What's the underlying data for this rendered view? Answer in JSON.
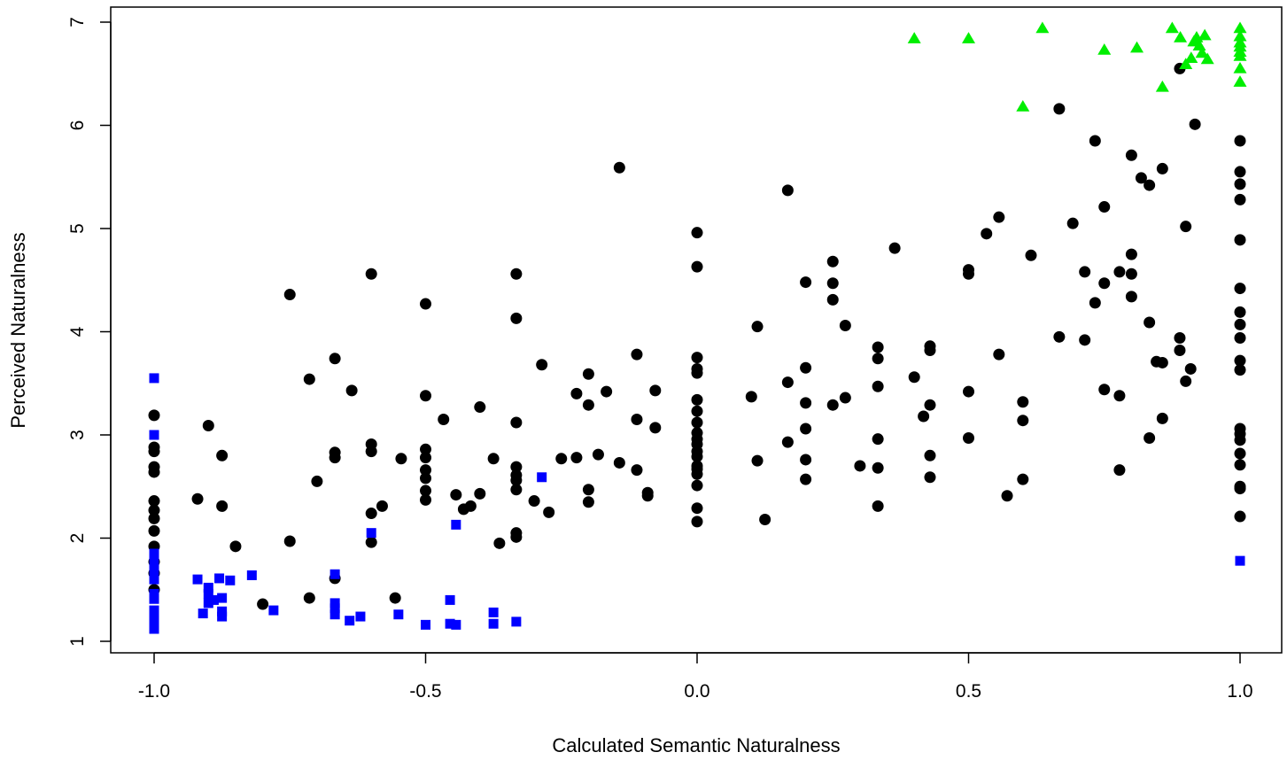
{
  "chart_data": {
    "type": "scatter",
    "title": "",
    "xlabel": "Calculated Semantic Naturalness",
    "ylabel": "Perceived Naturalness",
    "xlim": [
      -1.0,
      1.0
    ],
    "ylim": [
      1,
      7
    ],
    "x_ticks": [
      "-1.0",
      "-0.5",
      "0.0",
      "0.5",
      "1.0"
    ],
    "y_ticks": [
      "1",
      "2",
      "3",
      "4",
      "5",
      "6",
      "7"
    ],
    "grid": false,
    "legend": "none",
    "series": [
      {
        "marker": "circle",
        "color": "#000000",
        "points": [
          [
            -1.0,
            3.19
          ],
          [
            -1.0,
            2.88
          ],
          [
            -1.0,
            2.84
          ],
          [
            -1.0,
            2.69
          ],
          [
            -1.0,
            2.64
          ],
          [
            -1.0,
            2.36
          ],
          [
            -1.0,
            2.27
          ],
          [
            -1.0,
            2.19
          ],
          [
            -1.0,
            2.07
          ],
          [
            -1.0,
            1.92
          ],
          [
            -1.0,
            1.77
          ],
          [
            -1.0,
            1.66
          ],
          [
            -1.0,
            1.5
          ],
          [
            -0.92,
            2.38
          ],
          [
            -0.9,
            3.09
          ],
          [
            -0.875,
            2.8
          ],
          [
            -0.875,
            2.31
          ],
          [
            -0.85,
            1.92
          ],
          [
            -0.8,
            1.36
          ],
          [
            -0.75,
            4.36
          ],
          [
            -0.75,
            1.97
          ],
          [
            -0.714,
            3.54
          ],
          [
            -0.714,
            1.42
          ],
          [
            -0.7,
            2.55
          ],
          [
            -0.667,
            3.74
          ],
          [
            -0.667,
            2.83
          ],
          [
            -0.667,
            2.78
          ],
          [
            -0.667,
            1.61
          ],
          [
            -0.636,
            3.43
          ],
          [
            -0.6,
            4.56
          ],
          [
            -0.6,
            2.91
          ],
          [
            -0.6,
            2.84
          ],
          [
            -0.6,
            2.24
          ],
          [
            -0.6,
            1.96
          ],
          [
            -0.58,
            2.31
          ],
          [
            -0.556,
            1.42
          ],
          [
            -0.545,
            2.77
          ],
          [
            -0.5,
            4.27
          ],
          [
            -0.5,
            3.38
          ],
          [
            -0.5,
            2.86
          ],
          [
            -0.5,
            2.78
          ],
          [
            -0.5,
            2.66
          ],
          [
            -0.5,
            2.58
          ],
          [
            -0.5,
            2.46
          ],
          [
            -0.5,
            2.37
          ],
          [
            -0.467,
            3.15
          ],
          [
            -0.444,
            2.42
          ],
          [
            -0.43,
            2.28
          ],
          [
            -0.417,
            2.31
          ],
          [
            -0.4,
            3.27
          ],
          [
            -0.4,
            2.43
          ],
          [
            -0.375,
            2.77
          ],
          [
            -0.364,
            1.95
          ],
          [
            -0.333,
            4.56
          ],
          [
            -0.333,
            4.13
          ],
          [
            -0.333,
            3.12
          ],
          [
            -0.333,
            2.69
          ],
          [
            -0.333,
            2.61
          ],
          [
            -0.333,
            2.56
          ],
          [
            -0.333,
            2.47
          ],
          [
            -0.333,
            2.05
          ],
          [
            -0.333,
            2.01
          ],
          [
            -0.3,
            2.36
          ],
          [
            -0.286,
            3.68
          ],
          [
            -0.273,
            2.25
          ],
          [
            -0.25,
            2.77
          ],
          [
            -0.222,
            3.4
          ],
          [
            -0.222,
            2.78
          ],
          [
            -0.2,
            3.59
          ],
          [
            -0.2,
            3.29
          ],
          [
            -0.2,
            2.47
          ],
          [
            -0.2,
            2.35
          ],
          [
            -0.182,
            2.81
          ],
          [
            -0.167,
            3.42
          ],
          [
            -0.143,
            5.59
          ],
          [
            -0.143,
            2.73
          ],
          [
            -0.111,
            3.78
          ],
          [
            -0.111,
            3.15
          ],
          [
            -0.111,
            2.66
          ],
          [
            -0.091,
            2.44
          ],
          [
            -0.091,
            2.41
          ],
          [
            -0.077,
            3.43
          ],
          [
            -0.077,
            3.07
          ],
          [
            0.0,
            4.96
          ],
          [
            0.0,
            4.63
          ],
          [
            0.0,
            3.75
          ],
          [
            0.0,
            3.64
          ],
          [
            0.0,
            3.6
          ],
          [
            0.0,
            3.34
          ],
          [
            0.0,
            3.23
          ],
          [
            0.0,
            3.12
          ],
          [
            0.0,
            3.02
          ],
          [
            0.0,
            2.96
          ],
          [
            0.0,
            2.91
          ],
          [
            0.0,
            2.84
          ],
          [
            0.0,
            2.79
          ],
          [
            0.0,
            2.7
          ],
          [
            0.0,
            2.67
          ],
          [
            0.0,
            2.62
          ],
          [
            0.0,
            2.51
          ],
          [
            0.0,
            2.29
          ],
          [
            0.0,
            2.16
          ],
          [
            0.1,
            3.37
          ],
          [
            0.111,
            4.05
          ],
          [
            0.111,
            2.75
          ],
          [
            0.125,
            2.18
          ],
          [
            0.167,
            5.37
          ],
          [
            0.167,
            3.51
          ],
          [
            0.167,
            2.93
          ],
          [
            0.2,
            4.48
          ],
          [
            0.2,
            3.65
          ],
          [
            0.2,
            3.31
          ],
          [
            0.2,
            3.06
          ],
          [
            0.2,
            2.76
          ],
          [
            0.2,
            2.57
          ],
          [
            0.25,
            4.68
          ],
          [
            0.25,
            4.47
          ],
          [
            0.25,
            4.31
          ],
          [
            0.25,
            3.29
          ],
          [
            0.273,
            4.06
          ],
          [
            0.273,
            3.36
          ],
          [
            0.3,
            2.7
          ],
          [
            0.333,
            3.85
          ],
          [
            0.333,
            3.74
          ],
          [
            0.333,
            3.47
          ],
          [
            0.333,
            2.96
          ],
          [
            0.333,
            2.68
          ],
          [
            0.333,
            2.31
          ],
          [
            0.364,
            4.81
          ],
          [
            0.4,
            3.56
          ],
          [
            0.417,
            3.18
          ],
          [
            0.429,
            3.86
          ],
          [
            0.429,
            3.82
          ],
          [
            0.429,
            3.29
          ],
          [
            0.429,
            2.8
          ],
          [
            0.429,
            2.59
          ],
          [
            0.5,
            4.6
          ],
          [
            0.5,
            4.56
          ],
          [
            0.5,
            3.42
          ],
          [
            0.5,
            2.97
          ],
          [
            0.533,
            4.95
          ],
          [
            0.556,
            5.11
          ],
          [
            0.556,
            3.78
          ],
          [
            0.571,
            2.41
          ],
          [
            0.6,
            3.32
          ],
          [
            0.6,
            3.14
          ],
          [
            0.6,
            2.57
          ],
          [
            0.615,
            4.74
          ],
          [
            0.667,
            6.16
          ],
          [
            0.667,
            3.95
          ],
          [
            0.692,
            5.05
          ],
          [
            0.714,
            4.58
          ],
          [
            0.714,
            3.92
          ],
          [
            0.733,
            5.85
          ],
          [
            0.733,
            4.28
          ],
          [
            0.75,
            5.21
          ],
          [
            0.75,
            4.47
          ],
          [
            0.75,
            3.44
          ],
          [
            0.778,
            4.58
          ],
          [
            0.778,
            3.38
          ],
          [
            0.778,
            2.66
          ],
          [
            0.8,
            5.71
          ],
          [
            0.8,
            4.75
          ],
          [
            0.8,
            4.56
          ],
          [
            0.8,
            4.34
          ],
          [
            0.818,
            5.49
          ],
          [
            0.833,
            5.42
          ],
          [
            0.833,
            4.09
          ],
          [
            0.833,
            2.97
          ],
          [
            0.846,
            3.71
          ],
          [
            0.857,
            5.58
          ],
          [
            0.857,
            3.7
          ],
          [
            0.857,
            3.16
          ],
          [
            0.889,
            6.55
          ],
          [
            0.889,
            3.94
          ],
          [
            0.889,
            3.82
          ],
          [
            0.9,
            5.02
          ],
          [
            0.9,
            3.52
          ],
          [
            0.909,
            3.64
          ],
          [
            0.917,
            6.01
          ],
          [
            1.0,
            5.85
          ],
          [
            1.0,
            5.55
          ],
          [
            1.0,
            5.43
          ],
          [
            1.0,
            5.28
          ],
          [
            1.0,
            4.89
          ],
          [
            1.0,
            4.42
          ],
          [
            1.0,
            4.19
          ],
          [
            1.0,
            4.07
          ],
          [
            1.0,
            3.94
          ],
          [
            1.0,
            3.72
          ],
          [
            1.0,
            3.63
          ],
          [
            1.0,
            3.06
          ],
          [
            1.0,
            3.01
          ],
          [
            1.0,
            2.95
          ],
          [
            1.0,
            2.82
          ],
          [
            1.0,
            2.71
          ],
          [
            1.0,
            2.5
          ],
          [
            1.0,
            2.48
          ],
          [
            1.0,
            2.21
          ]
        ]
      },
      {
        "marker": "square",
        "color": "#0000ff",
        "points": [
          [
            -1.0,
            3.55
          ],
          [
            -1.0,
            3.0
          ],
          [
            -1.0,
            1.85
          ],
          [
            -1.0,
            1.8
          ],
          [
            -1.0,
            1.75
          ],
          [
            -1.0,
            1.7
          ],
          [
            -1.0,
            1.64
          ],
          [
            -1.0,
            1.6
          ],
          [
            -1.0,
            1.46
          ],
          [
            -1.0,
            1.41
          ],
          [
            -1.0,
            1.3
          ],
          [
            -1.0,
            1.25
          ],
          [
            -1.0,
            1.2
          ],
          [
            -1.0,
            1.15
          ],
          [
            -1.0,
            1.12
          ],
          [
            -0.92,
            1.6
          ],
          [
            -0.91,
            1.27
          ],
          [
            -0.9,
            1.52
          ],
          [
            -0.9,
            1.46
          ],
          [
            -0.9,
            1.37
          ],
          [
            -0.89,
            1.4
          ],
          [
            -0.88,
            1.61
          ],
          [
            -0.875,
            1.42
          ],
          [
            -0.875,
            1.29
          ],
          [
            -0.875,
            1.24
          ],
          [
            -0.86,
            1.59
          ],
          [
            -0.82,
            1.64
          ],
          [
            -0.78,
            1.3
          ],
          [
            -0.667,
            1.65
          ],
          [
            -0.667,
            1.37
          ],
          [
            -0.667,
            1.32
          ],
          [
            -0.667,
            1.26
          ],
          [
            -0.64,
            1.2
          ],
          [
            -0.62,
            1.24
          ],
          [
            -0.6,
            2.05
          ],
          [
            -0.55,
            1.26
          ],
          [
            -0.5,
            1.16
          ],
          [
            -0.455,
            1.4
          ],
          [
            -0.455,
            1.17
          ],
          [
            -0.444,
            2.13
          ],
          [
            -0.444,
            1.16
          ],
          [
            -0.375,
            1.28
          ],
          [
            -0.375,
            1.17
          ],
          [
            -0.333,
            1.19
          ],
          [
            -0.286,
            2.59
          ],
          [
            1.0,
            1.78
          ]
        ]
      },
      {
        "marker": "triangle",
        "color": "#00ee00",
        "points": [
          [
            0.4,
            6.84
          ],
          [
            0.5,
            6.84
          ],
          [
            0.6,
            6.18
          ],
          [
            0.636,
            6.94
          ],
          [
            0.75,
            6.73
          ],
          [
            0.81,
            6.75
          ],
          [
            0.857,
            6.37
          ],
          [
            0.875,
            6.94
          ],
          [
            0.89,
            6.85
          ],
          [
            0.9,
            6.59
          ],
          [
            0.91,
            6.65
          ],
          [
            0.915,
            6.81
          ],
          [
            0.92,
            6.85
          ],
          [
            0.925,
            6.77
          ],
          [
            0.93,
            6.7
          ],
          [
            0.935,
            6.87
          ],
          [
            0.94,
            6.64
          ],
          [
            1.0,
            6.94
          ],
          [
            1.0,
            6.86
          ],
          [
            1.0,
            6.8
          ],
          [
            1.0,
            6.76
          ],
          [
            1.0,
            6.71
          ],
          [
            1.0,
            6.67
          ],
          [
            1.0,
            6.55
          ],
          [
            1.0,
            6.42
          ]
        ]
      }
    ]
  }
}
